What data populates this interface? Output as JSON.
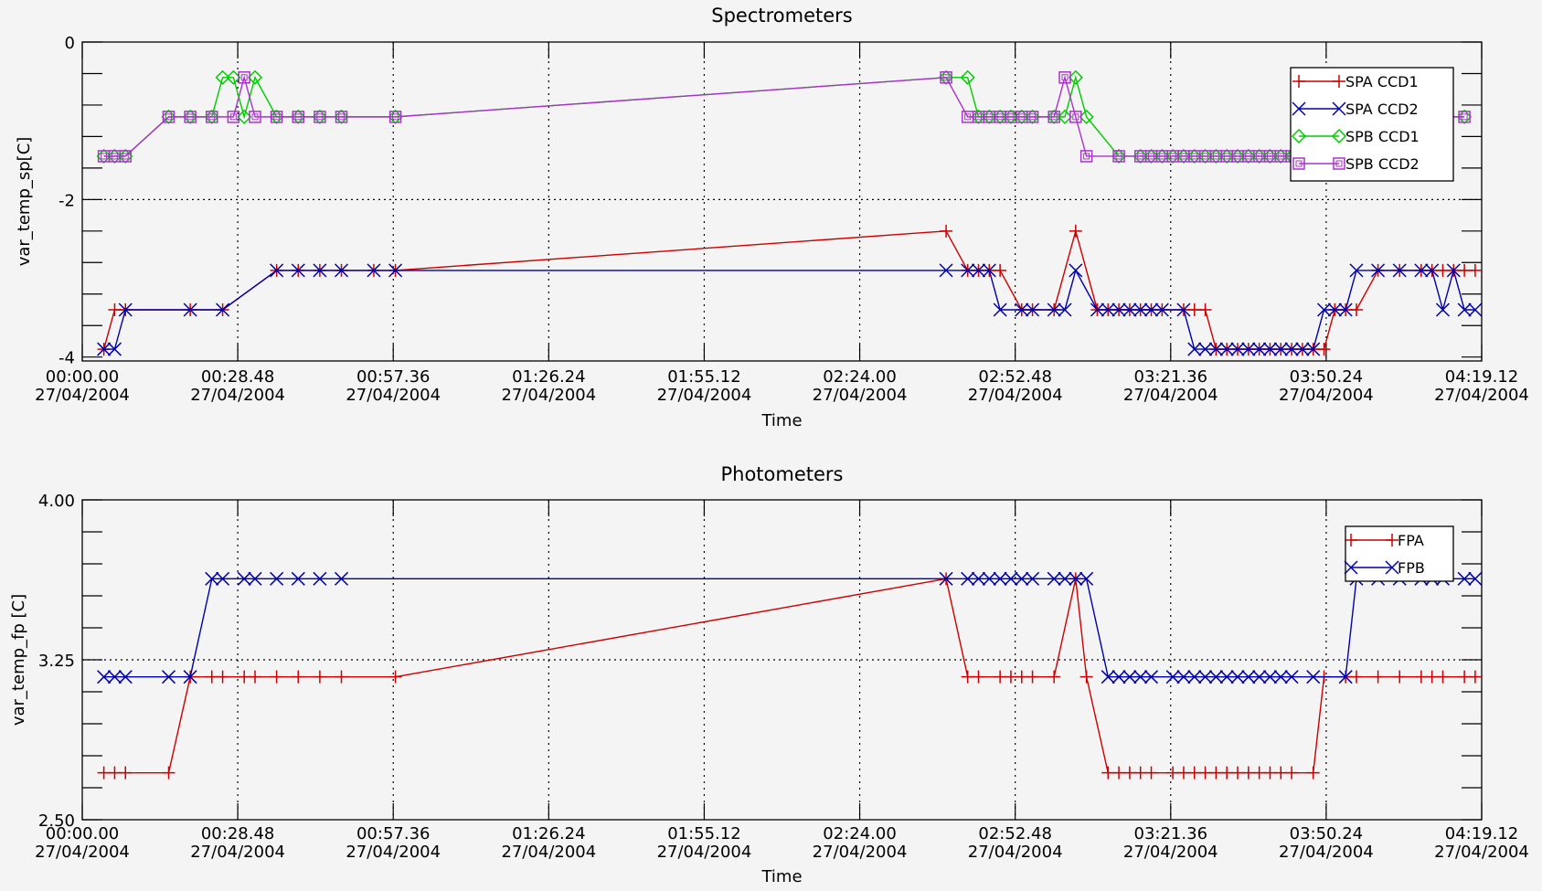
{
  "chart_data": [
    {
      "type": "line",
      "title": "Spectrometers",
      "xlabel": "Time",
      "ylabel": "var_temp_sp[C]",
      "xlim": [
        "00:00.00 27/04/2004",
        "04:19.12 27/04/2004"
      ],
      "ylim": [
        -4.05,
        0
      ],
      "x_tick_labels": [
        {
          "time": "00:00.00",
          "date": "27/04/2004"
        },
        {
          "time": "00:28.48",
          "date": "27/04/2004"
        },
        {
          "time": "00:57.36",
          "date": "27/04/2004"
        },
        {
          "time": "01:26.24",
          "date": "27/04/2004"
        },
        {
          "time": "01:55.12",
          "date": "27/04/2004"
        },
        {
          "time": "02:24.00",
          "date": "27/04/2004"
        },
        {
          "time": "02:52.48",
          "date": "27/04/2004"
        },
        {
          "time": "03:21.36",
          "date": "27/04/2004"
        },
        {
          "time": "03:50.24",
          "date": "27/04/2004"
        },
        {
          "time": "04:19.12",
          "date": "27/04/2004"
        }
      ],
      "y_tick_labels": [
        "0",
        "-2",
        "-4"
      ],
      "y_tick_values": [
        0,
        -2,
        -4
      ],
      "reference_line": -2,
      "grid": "vertical dotted at x ticks",
      "legend": "top-right",
      "series": [
        {
          "name": "SPA CCD1",
          "color": "#cc0000",
          "marker": "plus",
          "x": [
            4,
            6,
            8,
            20,
            26,
            36,
            40,
            44,
            48,
            54,
            58,
            160,
            164,
            166,
            168,
            170,
            174,
            176,
            180,
            184,
            188,
            190,
            192,
            194,
            196,
            198,
            200,
            204,
            206,
            208,
            210,
            212,
            214,
            216,
            218,
            220,
            222,
            224,
            226,
            228,
            230,
            232,
            234,
            236,
            240,
            244,
            248,
            250,
            252,
            254,
            256,
            258
          ],
          "y": [
            -3.9,
            -3.4,
            -3.4,
            -3.4,
            -3.4,
            -2.9,
            -2.9,
            -2.9,
            -2.9,
            -2.9,
            -2.9,
            -2.4,
            -2.9,
            -2.9,
            -2.9,
            -2.9,
            -3.4,
            -3.4,
            -3.4,
            -2.4,
            -3.4,
            -3.4,
            -3.4,
            -3.4,
            -3.4,
            -3.4,
            -3.4,
            -3.4,
            -3.4,
            -3.4,
            -3.9,
            -3.9,
            -3.9,
            -3.9,
            -3.9,
            -3.9,
            -3.9,
            -3.9,
            -3.9,
            -3.9,
            -3.9,
            -3.4,
            -3.4,
            -3.4,
            -2.9,
            -2.9,
            -2.9,
            -2.9,
            -2.9,
            -2.9,
            -2.9,
            -2.9
          ]
        },
        {
          "name": "SPA CCD2",
          "color": "#0000aa",
          "marker": "x",
          "x": [
            4,
            6,
            8,
            20,
            26,
            36,
            40,
            44,
            48,
            54,
            58,
            160,
            164,
            166,
            168,
            170,
            174,
            176,
            180,
            182,
            184,
            188,
            190,
            192,
            194,
            196,
            198,
            200,
            204,
            206,
            208,
            210,
            212,
            214,
            216,
            218,
            220,
            222,
            224,
            226,
            228,
            230,
            232,
            234,
            236,
            240,
            244,
            248,
            250,
            252,
            254,
            256,
            258
          ],
          "y": [
            -3.9,
            -3.9,
            -3.4,
            -3.4,
            -3.4,
            -2.9,
            -2.9,
            -2.9,
            -2.9,
            -2.9,
            -2.9,
            -2.9,
            -2.9,
            -2.9,
            -2.9,
            -3.4,
            -3.4,
            -3.4,
            -3.4,
            -3.4,
            -2.9,
            -3.4,
            -3.4,
            -3.4,
            -3.4,
            -3.4,
            -3.4,
            -3.4,
            -3.4,
            -3.9,
            -3.9,
            -3.9,
            -3.9,
            -3.9,
            -3.9,
            -3.9,
            -3.9,
            -3.9,
            -3.9,
            -3.9,
            -3.9,
            -3.4,
            -3.4,
            -3.4,
            -2.9,
            -2.9,
            -2.9,
            -2.9,
            -2.9,
            -3.4,
            -2.9,
            -3.4,
            -3.4
          ]
        },
        {
          "name": "SPB CCD1",
          "color": "#00cc00",
          "marker": "diamond",
          "x": [
            4,
            6,
            8,
            16,
            20,
            24,
            26,
            28,
            30,
            32,
            36,
            40,
            44,
            48,
            58,
            160,
            164,
            166,
            168,
            170,
            172,
            174,
            176,
            180,
            182,
            184,
            186,
            192,
            196,
            198,
            200,
            202,
            204,
            206,
            208,
            210,
            212,
            214,
            216,
            218,
            220,
            222,
            224,
            226,
            228,
            230,
            232,
            234,
            240,
            244,
            248,
            252,
            256
          ],
          "y": [
            -1.45,
            -1.45,
            -1.45,
            -0.95,
            -0.95,
            -0.95,
            -0.45,
            -0.45,
            -0.95,
            -0.45,
            -0.95,
            -0.95,
            -0.95,
            -0.95,
            -0.95,
            -0.45,
            -0.45,
            -0.95,
            -0.95,
            -0.95,
            -0.95,
            -0.95,
            -0.95,
            -0.95,
            -0.95,
            -0.45,
            -0.95,
            -1.45,
            -1.45,
            -1.45,
            -1.45,
            -1.45,
            -1.45,
            -1.45,
            -1.45,
            -1.45,
            -1.45,
            -1.45,
            -1.45,
            -1.45,
            -1.45,
            -1.45,
            -1.45,
            -1.45,
            -1.45,
            -1.45,
            -0.95,
            -0.95,
            -0.95,
            -0.95,
            -0.95,
            -0.95,
            -0.95
          ]
        },
        {
          "name": "SPB CCD2",
          "color": "#aa33cc",
          "marker": "square",
          "x": [
            4,
            6,
            8,
            16,
            20,
            24,
            28,
            30,
            32,
            36,
            40,
            44,
            48,
            58,
            160,
            164,
            166,
            168,
            170,
            172,
            174,
            176,
            180,
            182,
            184,
            186,
            192,
            196,
            198,
            200,
            202,
            204,
            206,
            208,
            210,
            212,
            214,
            216,
            218,
            220,
            222,
            224,
            226,
            228,
            230,
            232,
            234,
            240,
            244,
            248,
            252,
            256
          ],
          "y": [
            -1.45,
            -1.45,
            -1.45,
            -0.95,
            -0.95,
            -0.95,
            -0.95,
            -0.45,
            -0.95,
            -0.95,
            -0.95,
            -0.95,
            -0.95,
            -0.95,
            -0.45,
            -0.95,
            -0.95,
            -0.95,
            -0.95,
            -0.95,
            -0.95,
            -0.95,
            -0.95,
            -0.45,
            -0.95,
            -1.45,
            -1.45,
            -1.45,
            -1.45,
            -1.45,
            -1.45,
            -1.45,
            -1.45,
            -1.45,
            -1.45,
            -1.45,
            -1.45,
            -1.45,
            -1.45,
            -1.45,
            -1.45,
            -1.45,
            -1.45,
            -1.45,
            -0.95,
            -0.95,
            -0.95,
            -0.95,
            -0.95,
            -0.95,
            -0.95,
            -0.95
          ]
        }
      ]
    },
    {
      "type": "line",
      "title": "Photometers",
      "xlabel": "Time",
      "ylabel": "var_temp_fp [C]",
      "xlim": [
        "00:00.00 27/04/2004",
        "04:19.12 27/04/2004"
      ],
      "ylim": [
        2.5,
        4.0
      ],
      "x_tick_labels": [
        {
          "time": "00:00.00",
          "date": "27/04/2004"
        },
        {
          "time": "00:28.48",
          "date": "27/04/2004"
        },
        {
          "time": "00:57.36",
          "date": "27/04/2004"
        },
        {
          "time": "01:26.24",
          "date": "27/04/2004"
        },
        {
          "time": "01:55.12",
          "date": "27/04/2004"
        },
        {
          "time": "02:24.00",
          "date": "27/04/2004"
        },
        {
          "time": "02:52.48",
          "date": "27/04/2004"
        },
        {
          "time": "03:21.36",
          "date": "27/04/2004"
        },
        {
          "time": "03:50.24",
          "date": "27/04/2004"
        },
        {
          "time": "04:19.12",
          "date": "27/04/2004"
        }
      ],
      "y_tick_labels": [
        "4.00",
        "3.25",
        "2.50"
      ],
      "y_tick_values": [
        4.0,
        3.25,
        2.5
      ],
      "reference_line": 3.25,
      "grid": "vertical dotted at x ticks",
      "legend": "top-right",
      "series": [
        {
          "name": "FPA",
          "color": "#cc0000",
          "marker": "plus",
          "x": [
            4,
            6,
            8,
            16,
            20,
            24,
            26,
            30,
            32,
            36,
            40,
            44,
            48,
            58,
            160,
            164,
            166,
            170,
            172,
            174,
            176,
            180,
            184,
            186,
            190,
            192,
            194,
            196,
            198,
            202,
            204,
            206,
            208,
            210,
            212,
            214,
            216,
            218,
            220,
            222,
            224,
            228,
            230,
            234,
            236,
            240,
            244,
            248,
            250,
            252,
            256,
            258
          ],
          "y": [
            2.72,
            2.72,
            2.72,
            2.72,
            3.17,
            3.17,
            3.17,
            3.17,
            3.17,
            3.17,
            3.17,
            3.17,
            3.17,
            3.17,
            3.63,
            3.17,
            3.17,
            3.17,
            3.17,
            3.17,
            3.17,
            3.17,
            3.63,
            3.17,
            2.72,
            2.72,
            2.72,
            2.72,
            2.72,
            2.72,
            2.72,
            2.72,
            2.72,
            2.72,
            2.72,
            2.72,
            2.72,
            2.72,
            2.72,
            2.72,
            2.72,
            2.72,
            3.17,
            3.17,
            3.17,
            3.17,
            3.17,
            3.17,
            3.17,
            3.17,
            3.17,
            3.17
          ]
        },
        {
          "name": "FPB",
          "color": "#0000aa",
          "marker": "x",
          "x": [
            4,
            6,
            8,
            16,
            20,
            24,
            26,
            30,
            32,
            36,
            40,
            44,
            48,
            160,
            164,
            166,
            168,
            170,
            172,
            174,
            176,
            180,
            182,
            184,
            186,
            190,
            192,
            194,
            196,
            198,
            202,
            204,
            206,
            208,
            210,
            212,
            214,
            216,
            218,
            220,
            222,
            224,
            228,
            234,
            236,
            240,
            244,
            248,
            250,
            252,
            256,
            258
          ],
          "y": [
            3.17,
            3.17,
            3.17,
            3.17,
            3.17,
            3.63,
            3.63,
            3.63,
            3.63,
            3.63,
            3.63,
            3.63,
            3.63,
            3.63,
            3.63,
            3.63,
            3.63,
            3.63,
            3.63,
            3.63,
            3.63,
            3.63,
            3.63,
            3.63,
            3.63,
            3.17,
            3.17,
            3.17,
            3.17,
            3.17,
            3.17,
            3.17,
            3.17,
            3.17,
            3.17,
            3.17,
            3.17,
            3.17,
            3.17,
            3.17,
            3.17,
            3.17,
            3.17,
            3.17,
            3.63,
            3.63,
            3.63,
            3.63,
            3.63,
            3.63,
            3.63,
            3.63
          ]
        }
      ]
    }
  ]
}
